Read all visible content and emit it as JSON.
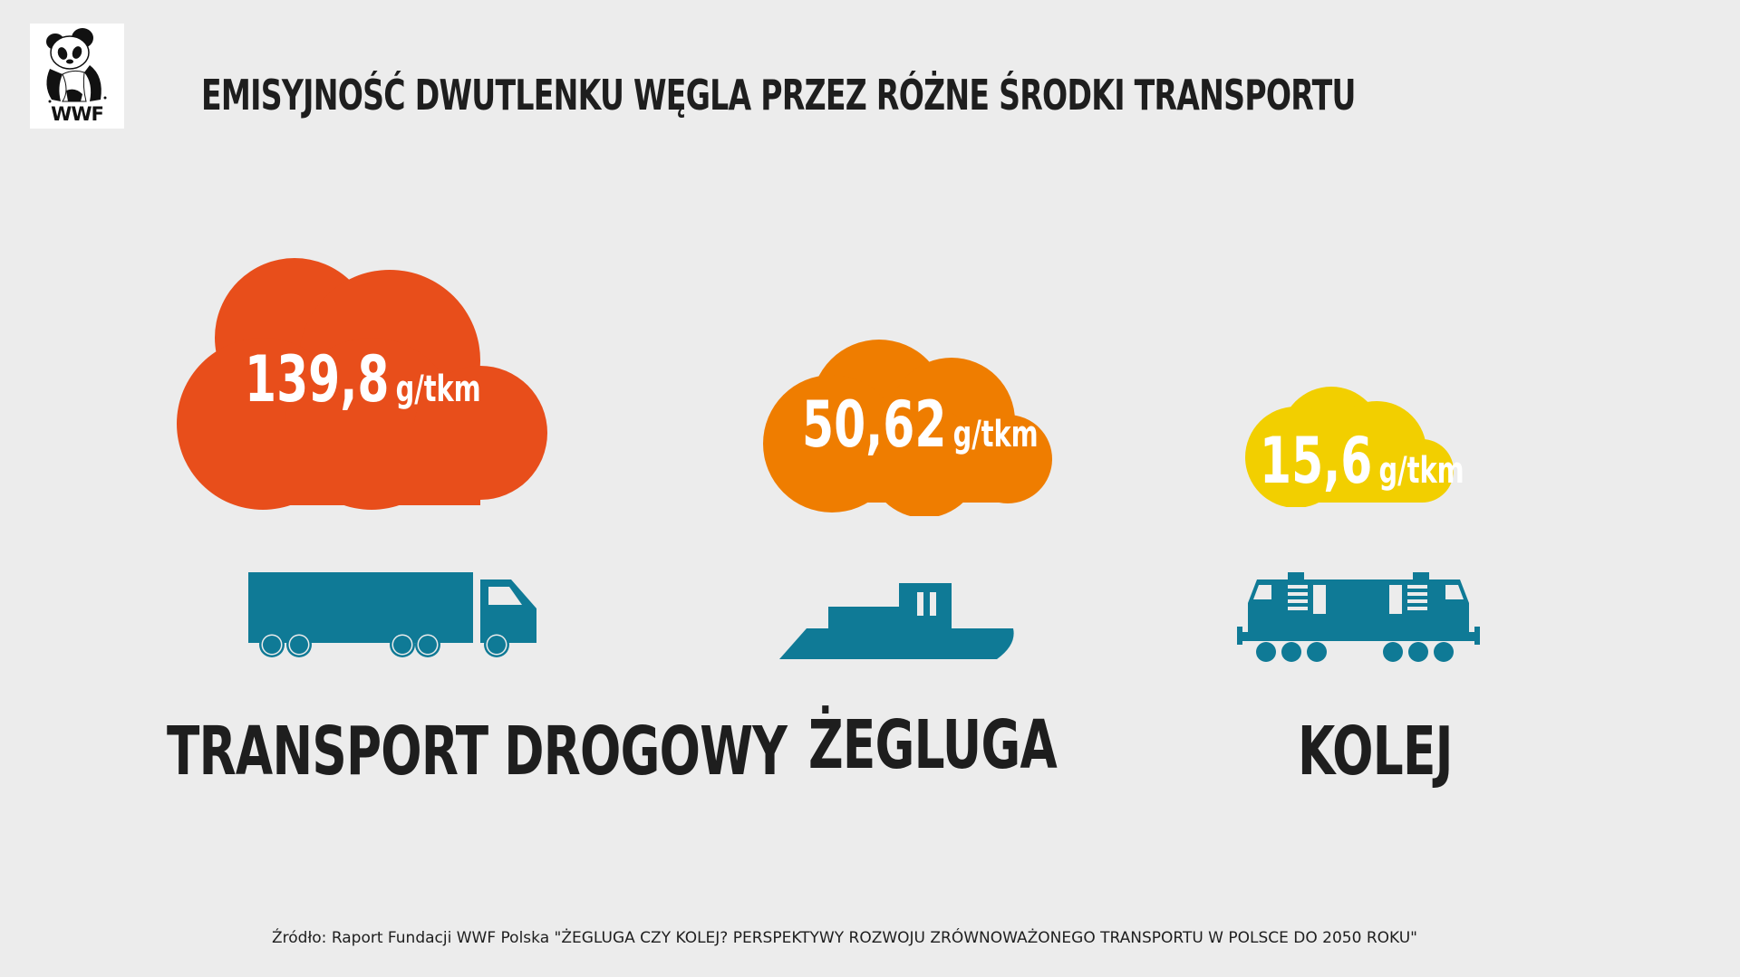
{
  "logo": {
    "text": "WWF",
    "icon": "panda-icon"
  },
  "title": "EMISYJNOŚĆ  DWUTLENKU WĘGLA PRZEZ RÓŻNE ŚRODKI TRANSPORTU",
  "items": [
    {
      "value": "139,8",
      "unit": "g/tkm",
      "label": "TRANSPORT DROGOWY",
      "icon": "truck-icon",
      "cloud_color": "#e84e1b"
    },
    {
      "value": "50,62",
      "unit": "g/tkm",
      "label": "ŻEGLUGA",
      "icon": "ship-icon",
      "cloud_color": "#ef7d00"
    },
    {
      "value": "15,6",
      "unit": "g/tkm",
      "label": "KOLEJ",
      "icon": "locomotive-icon",
      "cloud_color": "#f2cf00"
    }
  ],
  "vehicle_color": "#0f7a96",
  "source": "Źródło: Raport Fundacji WWF Polska \"ŻEGLUGA CZY KOLEJ? PERSPEKTYWY ROZWOJU ZRÓWNOWAŻONEGO TRANSPORTU  W POLSCE DO 2050 ROKU\""
}
